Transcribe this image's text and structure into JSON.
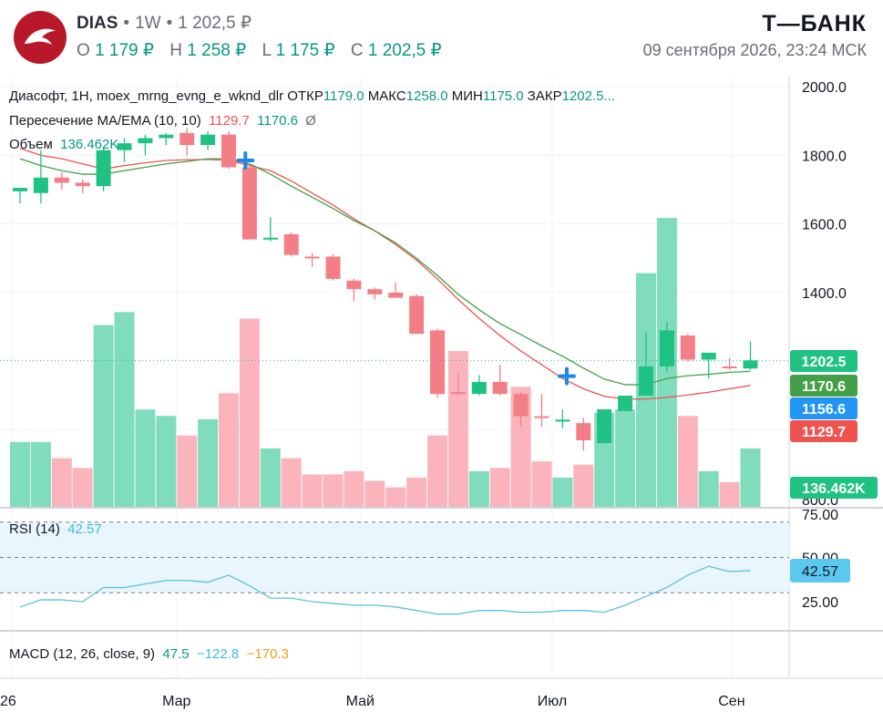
{
  "header": {
    "symbol": "DIAS",
    "interval": "1W",
    "last_price": "1 202,5 ₽",
    "ohlc": {
      "o_label": "O",
      "o_value": "1 179 ₽",
      "h_label": "H",
      "h_value": "1 258 ₽",
      "l_label": "L",
      "l_value": "1 175 ₽",
      "c_label": "C",
      "c_value": "1 202,5 ₽"
    },
    "brand": "Т—БАНК",
    "datetime": "09 сентября 2026, 23:24 МСК"
  },
  "legend": {
    "main": "Диасофт, 1H, moex_mrng_evng_e_wknd_dlr",
    "open_label": "ОТКР",
    "open_value": "1179.0",
    "high_label": "МАКС",
    "high_value": "1258.0",
    "low_label": "МИН",
    "low_value": "1175.0",
    "close_label": "ЗАКР",
    "close_value": "1202.5...",
    "ma_name": "Пересечение MA/EMA (10, 10)",
    "ma_value": "1129.7",
    "ema_value": "1170.6",
    "ma_symbol": "Ø",
    "volume_name": "Объем",
    "volume_value": "136.462K",
    "rsi_name": "RSI (14)",
    "rsi_value": "42.57",
    "macd_name": "MACD (12, 26, close, 9)",
    "macd_v1": "47.5",
    "macd_v2": "−122.8",
    "macd_v3": "−170.3"
  },
  "price_labels": {
    "close": "1202.5",
    "ema": "1170.6",
    "cross": "1156.6",
    "ma": "1129.7",
    "volume": "136.462K",
    "rsi": "42.57"
  },
  "colors": {
    "up": "#1fc282",
    "down": "#f47e86",
    "up_vol": "#7fdcbc",
    "down_vol": "#fbb4bb",
    "ma": "#ef5350",
    "ema": "#43a047",
    "rsi_line": "#5bc0de",
    "cross_marker": "#1e88e5"
  },
  "chart_data": [
    {
      "type": "candlestick",
      "title": "",
      "ylim": [
        780,
        2010
      ],
      "yticks": [
        2000.0,
        1800.0,
        1600.0,
        1400.0,
        800.0
      ],
      "ytick_labels": [
        "2000.0",
        "1800.0",
        "1600.0",
        "1400.0",
        "800.0"
      ],
      "xtick_labels": [
        {
          "label": "26",
          "index": -0.4
        },
        {
          "label": "Мар",
          "index": 7.5
        },
        {
          "label": "Май",
          "index": 16.3
        },
        {
          "label": "Июл",
          "index": 25.5
        },
        {
          "label": "Сен",
          "index": 34.1
        }
      ],
      "candles": [
        {
          "o": 1695,
          "h": 1705,
          "l": 1660,
          "c": 1705
        },
        {
          "o": 1690,
          "h": 1815,
          "l": 1660,
          "c": 1735
        },
        {
          "o": 1735,
          "h": 1750,
          "l": 1700,
          "c": 1720
        },
        {
          "o": 1720,
          "h": 1730,
          "l": 1690,
          "c": 1710
        },
        {
          "o": 1710,
          "h": 1820,
          "l": 1695,
          "c": 1815
        },
        {
          "o": 1815,
          "h": 1850,
          "l": 1780,
          "c": 1835
        },
        {
          "o": 1835,
          "h": 1860,
          "l": 1800,
          "c": 1850
        },
        {
          "o": 1850,
          "h": 1865,
          "l": 1830,
          "c": 1860
        },
        {
          "o": 1865,
          "h": 1880,
          "l": 1800,
          "c": 1830
        },
        {
          "o": 1830,
          "h": 1870,
          "l": 1815,
          "c": 1860
        },
        {
          "o": 1860,
          "h": 1870,
          "l": 1760,
          "c": 1765
        },
        {
          "o": 1765,
          "h": 1775,
          "l": 1555,
          "c": 1555
        },
        {
          "o": 1555,
          "h": 1620,
          "l": 1550,
          "c": 1560
        },
        {
          "o": 1570,
          "h": 1575,
          "l": 1505,
          "c": 1510
        },
        {
          "o": 1505,
          "h": 1515,
          "l": 1475,
          "c": 1500
        },
        {
          "o": 1505,
          "h": 1512,
          "l": 1435,
          "c": 1440
        },
        {
          "o": 1435,
          "h": 1440,
          "l": 1375,
          "c": 1410
        },
        {
          "o": 1410,
          "h": 1415,
          "l": 1380,
          "c": 1395
        },
        {
          "o": 1400,
          "h": 1430,
          "l": 1385,
          "c": 1385
        },
        {
          "o": 1390,
          "h": 1395,
          "l": 1280,
          "c": 1280
        },
        {
          "o": 1290,
          "h": 1295,
          "l": 1095,
          "c": 1105
        },
        {
          "o": 1110,
          "h": 1165,
          "l": 1100,
          "c": 1105
        },
        {
          "o": 1105,
          "h": 1160,
          "l": 1100,
          "c": 1140
        },
        {
          "o": 1140,
          "h": 1190,
          "l": 1100,
          "c": 1105
        },
        {
          "o": 1105,
          "h": 1110,
          "l": 1010,
          "c": 1040
        },
        {
          "o": 1040,
          "h": 1105,
          "l": 1010,
          "c": 1035
        },
        {
          "o": 1030,
          "h": 1060,
          "l": 1005,
          "c": 1030
        },
        {
          "o": 1020,
          "h": 1035,
          "l": 940,
          "c": 970
        },
        {
          "o": 962,
          "h": 1060,
          "l": 962,
          "c": 1060
        },
        {
          "o": 1055,
          "h": 1100,
          "l": 1055,
          "c": 1100
        },
        {
          "o": 1100,
          "h": 1285,
          "l": 1100,
          "c": 1185
        },
        {
          "o": 1185,
          "h": 1315,
          "l": 1170,
          "c": 1290
        },
        {
          "o": 1275,
          "h": 1280,
          "l": 1200,
          "c": 1205
        },
        {
          "o": 1205,
          "h": 1215,
          "l": 1150,
          "c": 1225
        },
        {
          "o": 1185,
          "h": 1210,
          "l": 1175,
          "c": 1180
        },
        {
          "o": 1179,
          "h": 1258,
          "l": 1175,
          "c": 1202.5
        }
      ],
      "ma": [
        1820,
        1800,
        1790,
        1775,
        1760,
        1770,
        1778,
        1785,
        1787,
        1788,
        1785,
        1770,
        1755,
        1725,
        1690,
        1655,
        1615,
        1580,
        1540,
        1495,
        1440,
        1380,
        1325,
        1275,
        1230,
        1190,
        1150,
        1120,
        1098,
        1090,
        1090,
        1095,
        1102,
        1110,
        1120,
        1129.7
      ],
      "ema": [
        1790,
        1770,
        1755,
        1745,
        1745,
        1755,
        1765,
        1775,
        1782,
        1790,
        1790,
        1775,
        1745,
        1710,
        1678,
        1645,
        1610,
        1580,
        1545,
        1500,
        1450,
        1395,
        1350,
        1310,
        1278,
        1245,
        1215,
        1180,
        1148,
        1132,
        1132,
        1150,
        1158,
        1162,
        1168,
        1170.6
      ],
      "cross_markers": [
        {
          "index": 10.8,
          "value": 1785
        },
        {
          "index": 26.2,
          "value": 1156.6
        }
      ],
      "volume": [
        1.0,
        1.0,
        0.75,
        0.6,
        2.8,
        3.0,
        1.5,
        1.4,
        1.1,
        1.35,
        1.75,
        2.9,
        0.9,
        0.75,
        0.5,
        0.5,
        0.55,
        0.4,
        0.3,
        0.45,
        1.1,
        2.4,
        0.55,
        0.6,
        1.85,
        0.7,
        0.45,
        0.65,
        1.45,
        1.5,
        3.6,
        4.45,
        1.4,
        0.55,
        0.38,
        0.9
      ],
      "volume_max": 6.6
    },
    {
      "type": "line",
      "title": "RSI (14)",
      "ylim": [
        12,
        75
      ],
      "yticks": [
        75.0,
        50.0,
        25.0
      ],
      "ytick_labels": [
        "75.00",
        "50.00",
        "25.00"
      ],
      "band": [
        30,
        70
      ],
      "mid": 50,
      "values": [
        22,
        26,
        26,
        25,
        33,
        33,
        35,
        37,
        37,
        36,
        40,
        34,
        27,
        27,
        25,
        24,
        23,
        23,
        22,
        20,
        18,
        18,
        20,
        20,
        19,
        19,
        20,
        20,
        19,
        23,
        28,
        33,
        40,
        45,
        42,
        42.57
      ]
    }
  ]
}
